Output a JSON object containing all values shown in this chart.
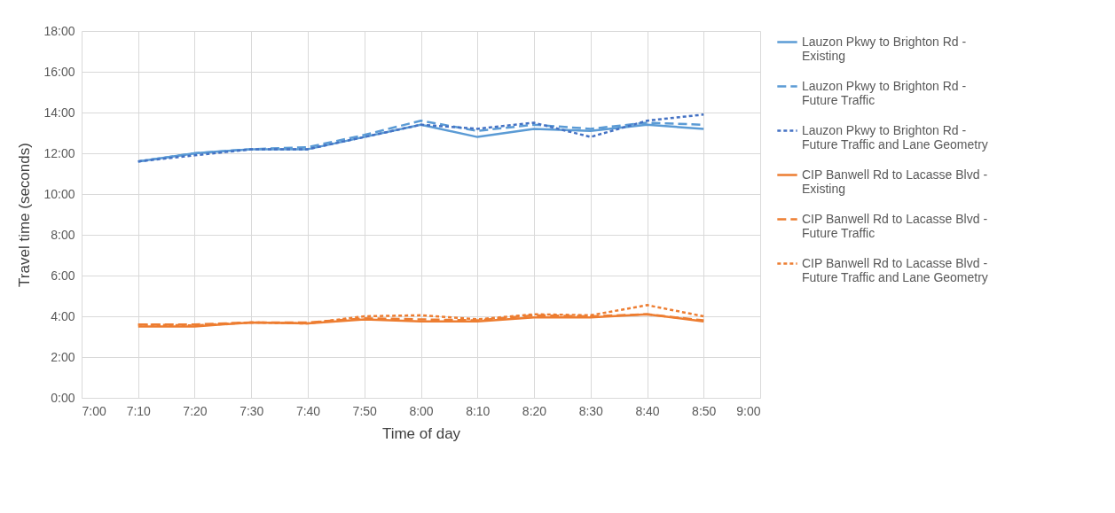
{
  "chart_data": {
    "type": "line",
    "xlabel": "Time of day",
    "ylabel": "Travel time (seconds)",
    "x": [
      7.1667,
      7.3333,
      7.5,
      7.6667,
      7.8333,
      8,
      8.1667,
      8.3333,
      8.5,
      8.6667,
      8.8333
    ],
    "xlim": [
      7,
      9
    ],
    "xticks": [
      {
        "value": 7,
        "label": "7:00"
      },
      {
        "value": 7.1667,
        "label": "7:10"
      },
      {
        "value": 7.3333,
        "label": "7:20"
      },
      {
        "value": 7.5,
        "label": "7:30"
      },
      {
        "value": 7.6667,
        "label": "7:40"
      },
      {
        "value": 7.8333,
        "label": "7:50"
      },
      {
        "value": 8,
        "label": "8:00"
      },
      {
        "value": 8.1667,
        "label": "8:10"
      },
      {
        "value": 8.3333,
        "label": "8:20"
      },
      {
        "value": 8.5,
        "label": "8:30"
      },
      {
        "value": 8.6667,
        "label": "8:40"
      },
      {
        "value": 8.8333,
        "label": "8:50"
      },
      {
        "value": 9,
        "label": "9:00"
      }
    ],
    "ylim": [
      0,
      18
    ],
    "yticks": [
      {
        "value": 0,
        "label": "0:00"
      },
      {
        "value": 2,
        "label": "2:00"
      },
      {
        "value": 4,
        "label": "4:00"
      },
      {
        "value": 6,
        "label": "6:00"
      },
      {
        "value": 8,
        "label": "8:00"
      },
      {
        "value": 10,
        "label": "10:00"
      },
      {
        "value": 12,
        "label": "12:00"
      },
      {
        "value": 14,
        "label": "14:00"
      },
      {
        "value": 16,
        "label": "16:00"
      },
      {
        "value": 18,
        "label": "18:00"
      }
    ],
    "grid": true,
    "legend": "right",
    "marker": "none",
    "series": [
      {
        "name": "Lauzon Pkwy to Brighton Rd - Existing",
        "color": "#5b9bd5",
        "line_style": "solid",
        "values": [
          11.6,
          12.0,
          12.2,
          12.2,
          12.8,
          13.4,
          12.8,
          13.2,
          13.1,
          13.4,
          13.2
        ]
      },
      {
        "name": "Lauzon Pkwy to Brighton Rd - Future Traffic",
        "color": "#5b9bd5",
        "line_style": "dashed",
        "values": [
          11.6,
          12.0,
          12.2,
          12.3,
          12.9,
          13.6,
          13.1,
          13.4,
          13.2,
          13.5,
          13.4
        ]
      },
      {
        "name": "Lauzon Pkwy to Brighton Rd - Future Traffic and Lane Geometry",
        "color": "#4472c4",
        "line_style": "dotted",
        "values": [
          11.6,
          11.9,
          12.2,
          12.2,
          12.8,
          13.4,
          13.2,
          13.5,
          12.8,
          13.6,
          13.9
        ]
      },
      {
        "name": "CIP Banwell Rd to Lacasse Blvd - Existing",
        "color": "#ed7d31",
        "line_style": "solid",
        "values": [
          3.5,
          3.5,
          3.7,
          3.65,
          3.85,
          3.75,
          3.75,
          3.95,
          3.95,
          4.1,
          3.75
        ]
      },
      {
        "name": "CIP Banwell Rd to Lacasse Blvd - Future Traffic",
        "color": "#ed7d31",
        "line_style": "dashed",
        "values": [
          3.6,
          3.6,
          3.7,
          3.7,
          3.9,
          3.85,
          3.8,
          4.05,
          4.0,
          4.1,
          3.8
        ]
      },
      {
        "name": "CIP Banwell Rd to Lacasse Blvd - Future Traffic and Lane Geometry",
        "color": "#ed7d31",
        "line_style": "dotted",
        "values": [
          3.6,
          3.55,
          3.7,
          3.65,
          4.0,
          4.05,
          3.85,
          4.1,
          4.05,
          4.55,
          4.0
        ]
      }
    ]
  }
}
